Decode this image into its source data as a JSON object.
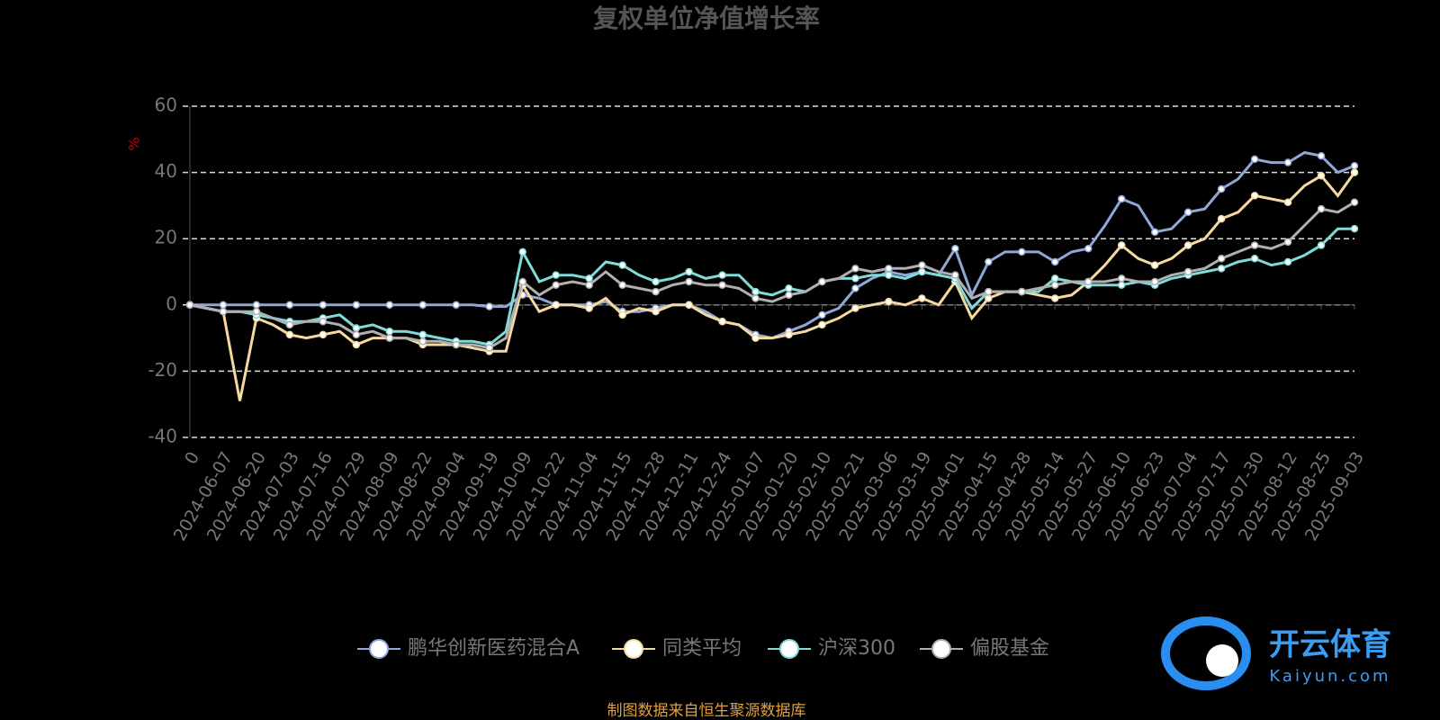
{
  "chart_data": {
    "type": "line",
    "title": "复权单位净值增长率",
    "y_label": "%",
    "source": "制图数据来自恒生聚源数据库",
    "watermark": {
      "brand": "开云体育",
      "site": "Kaiyun.com"
    },
    "categories": [
      "0",
      null,
      "2024-06-07",
      null,
      "2024-06-20",
      null,
      "2024-07-03",
      null,
      "2024-07-16",
      null,
      "2024-07-29",
      null,
      "2024-08-09",
      null,
      "2024-08-22",
      null,
      "2024-09-04",
      null,
      "2024-09-19",
      null,
      "2024-10-09",
      null,
      "2024-10-22",
      null,
      "2024-11-04",
      null,
      "2024-11-15",
      null,
      "2024-11-28",
      null,
      "2024-12-11",
      null,
      "2024-12-24",
      null,
      "2025-01-07",
      null,
      "2025-01-20",
      null,
      "2025-02-10",
      null,
      "2025-02-21",
      null,
      "2025-03-06",
      null,
      "2025-03-19",
      null,
      "2025-04-01",
      null,
      "2025-04-15",
      null,
      "2025-04-28",
      null,
      "2025-05-14",
      null,
      "2025-05-27",
      null,
      "2025-06-10",
      null,
      "2025-06-23",
      null,
      "2025-07-04",
      null,
      "2025-07-17",
      null,
      "2025-07-30",
      null,
      "2025-08-12",
      null,
      "2025-08-25",
      null,
      "2025-09-03"
    ],
    "ylim": [
      -40,
      60
    ],
    "yticks": [
      -40,
      -20,
      0,
      20,
      40,
      60
    ],
    "grid": true,
    "series": [
      {
        "name": "鹏华创新医药混合A",
        "color": "#8fa8d8",
        "values": [
          0,
          0,
          0,
          0,
          0,
          0,
          0,
          0,
          0,
          0,
          0,
          0,
          0,
          0,
          0,
          0,
          0,
          0,
          -0.5,
          -0.5,
          3,
          2,
          0,
          0,
          0,
          1,
          -2,
          -2,
          -1,
          0,
          0,
          -2,
          -5,
          -6,
          -9,
          -10,
          -8,
          -6,
          -3,
          -1,
          5,
          8,
          10,
          9,
          10,
          9,
          17,
          3,
          13,
          16,
          16,
          16,
          13,
          16,
          17,
          24,
          32,
          30,
          22,
          23,
          28,
          29,
          35,
          38,
          44,
          43,
          43,
          46,
          45,
          40,
          42
        ]
      },
      {
        "name": "同类平均",
        "color": "#f5d9a0",
        "values": [
          0,
          -1,
          -2,
          -29,
          -4,
          -6,
          -9,
          -10,
          -9,
          -8,
          -12,
          -10,
          -10,
          -10,
          -12,
          -12,
          -12,
          -13,
          -14,
          -14,
          6,
          -2,
          0,
          0,
          -1,
          2,
          -3,
          -1,
          -2,
          0,
          0,
          -3,
          -5,
          -6,
          -10,
          -10,
          -9,
          -8,
          -6,
          -4,
          -1,
          0,
          1,
          0,
          2,
          0,
          7,
          -4,
          2,
          4,
          4,
          3,
          2,
          3,
          7,
          12,
          18,
          14,
          12,
          14,
          18,
          20,
          26,
          28,
          33,
          32,
          31,
          36,
          39,
          33,
          40
        ]
      },
      {
        "name": "沪深300",
        "color": "#7fdada",
        "values": [
          0,
          -1,
          -2,
          -2,
          -3,
          -4,
          -5,
          -5,
          -4,
          -3,
          -7,
          -6,
          -8,
          -8,
          -9,
          -10,
          -11,
          -11,
          -12,
          -8,
          16,
          7,
          9,
          9,
          8,
          13,
          12,
          9,
          7,
          8,
          10,
          8,
          9,
          9,
          4,
          3,
          5,
          4,
          7,
          8,
          8,
          9,
          9,
          8,
          10,
          9,
          8,
          -1,
          4,
          4,
          4,
          4,
          8,
          7,
          6,
          6,
          6,
          7,
          6,
          8,
          9,
          10,
          11,
          13,
          14,
          12,
          13,
          15,
          18,
          23,
          23
        ]
      },
      {
        "name": "偏股基金",
        "color": "#b0b0b0",
        "values": [
          0,
          -1,
          -2,
          -2,
          -2,
          -4,
          -6,
          -5,
          -5,
          -6,
          -9,
          -8,
          -10,
          -10,
          -11,
          -11,
          -12,
          -12,
          -13,
          -10,
          7,
          3,
          6,
          7,
          6,
          10,
          6,
          5,
          4,
          6,
          7,
          6,
          6,
          5,
          2,
          1,
          3,
          4,
          7,
          8,
          11,
          10,
          11,
          11,
          12,
          10,
          9,
          2,
          4,
          4,
          4,
          5,
          6,
          7,
          7,
          7,
          8,
          7,
          7,
          9,
          10,
          11,
          14,
          16,
          18,
          17,
          19,
          24,
          29,
          28,
          31
        ]
      }
    ]
  }
}
